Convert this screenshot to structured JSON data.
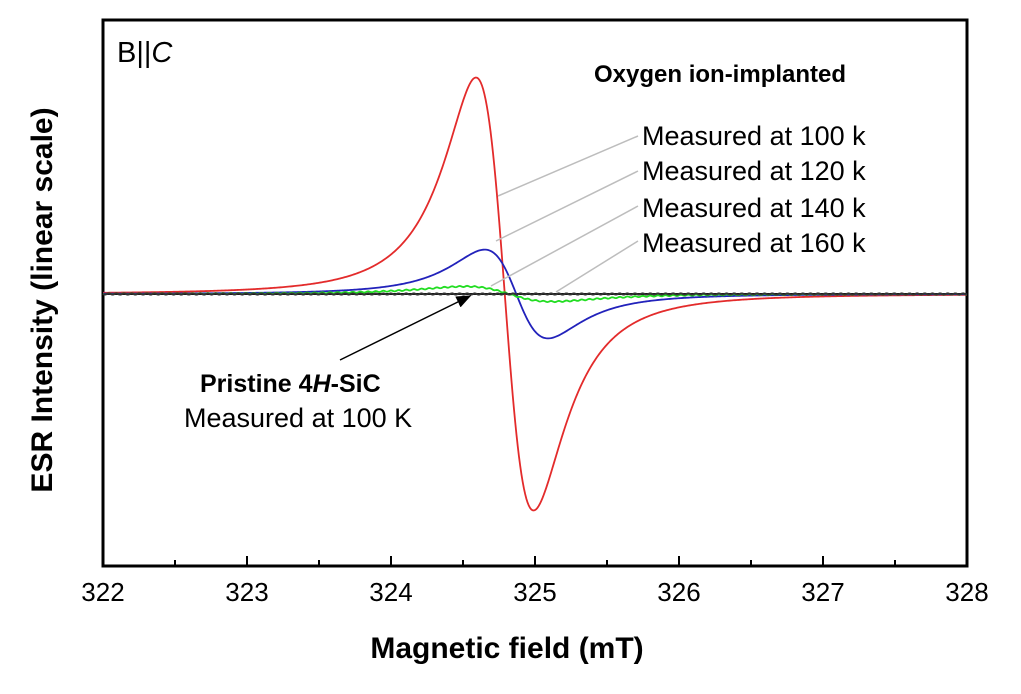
{
  "chart_data": {
    "type": "line",
    "orientation_label": "B||",
    "orientation_axis": "C",
    "title": "Oxygen ion-implanted",
    "xlabel": "Magnetic field (mT)",
    "ylabel": "ESR Intensity (linear scale)",
    "xlim": [
      322,
      328
    ],
    "xticks": [
      "322",
      "323",
      "324",
      "325",
      "326",
      "327",
      "328"
    ],
    "y_tick_labels": false,
    "grid": false,
    "series": [
      {
        "name": "Measured at 100 k",
        "color": "#e32b2b",
        "center": 324.79,
        "half_width": 0.2,
        "amplitude": 1.0
      },
      {
        "name": "Measured at 120 k",
        "color": "#2222bb",
        "center": 324.87,
        "half_width": 0.22,
        "amplitude": 0.205
      },
      {
        "name": "Measured at 140 k",
        "color": "#22dd22",
        "center": 324.82,
        "half_width": 0.3,
        "amplitude": 0.035
      },
      {
        "name": "Measured at 160 k",
        "color": "#333333",
        "center": 324.8,
        "half_width": 0.25,
        "amplitude": 0.0
      }
    ],
    "annotation": {
      "label_bold_prefix": "Pristine 4",
      "label_bold_italic": "H",
      "label_bold_suffix": "-SiC",
      "sublabel": "Measured at 100 K",
      "points_to_x": 324.55
    }
  }
}
